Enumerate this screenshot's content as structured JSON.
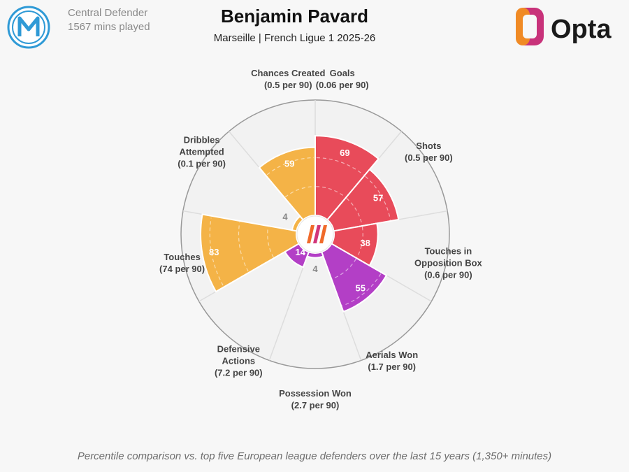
{
  "header": {
    "position": "Central Defender",
    "minutes": "1567 mins played",
    "player_name": "Benjamin Pavard",
    "subtitle": "Marseille | French Ligue 1 2025-26",
    "brand": "Opta"
  },
  "footnote": "Percentile comparison vs. top five European league defenders over the last 15 years (1,350+ minutes)",
  "colors": {
    "attacking": "#e84b5a",
    "defending": "#b33fc6",
    "possession": "#f4b347",
    "grid": "#dddddd",
    "outer_ring": "#999999",
    "center_logo_a": "#f06a2a",
    "center_logo_b": "#d2367a",
    "opta_orange": "#f08a24",
    "opta_magenta": "#c8327a",
    "badge_blue": "#2f9ad6"
  },
  "chart_data": {
    "type": "radar-bar",
    "scale": [
      0,
      100
    ],
    "start_angle_deg": 0,
    "direction": "clockwise",
    "metrics": [
      {
        "name": "Goals",
        "label_lines": [
          "Goals",
          "(0.06 per 90)"
        ],
        "percentile": 69,
        "group": "attacking"
      },
      {
        "name": "Shots",
        "label_lines": [
          "Shots",
          "(0.5 per 90)"
        ],
        "percentile": 57,
        "group": "attacking"
      },
      {
        "name": "Touches in Opposition Box",
        "label_lines": [
          "Touches in",
          "Opposition Box",
          "(0.6 per 90)"
        ],
        "percentile": 38,
        "group": "attacking"
      },
      {
        "name": "Aerials Won",
        "label_lines": [
          "Aerials Won",
          "(1.7 per 90)"
        ],
        "percentile": 55,
        "group": "defending"
      },
      {
        "name": "Possession Won",
        "label_lines": [
          "Possession Won",
          "(2.7 per 90)"
        ],
        "percentile": 4,
        "group": "defending"
      },
      {
        "name": "Defensive Actions",
        "label_lines": [
          "Defensive",
          "Actions",
          "(7.2 per 90)"
        ],
        "percentile": 14,
        "group": "defending"
      },
      {
        "name": "Touches",
        "label_lines": [
          "Touches",
          "(74 per 90)"
        ],
        "percentile": 83,
        "group": "possession"
      },
      {
        "name": "Dribbles Attempted",
        "label_lines": [
          "Dribbles",
          "Attempted",
          "(0.1 per 90)"
        ],
        "percentile": 4,
        "group": "possession"
      },
      {
        "name": "Chances Created",
        "label_lines": [
          "Chances Created",
          "(0.5 per 90)"
        ],
        "percentile": 59,
        "group": "possession"
      }
    ]
  }
}
